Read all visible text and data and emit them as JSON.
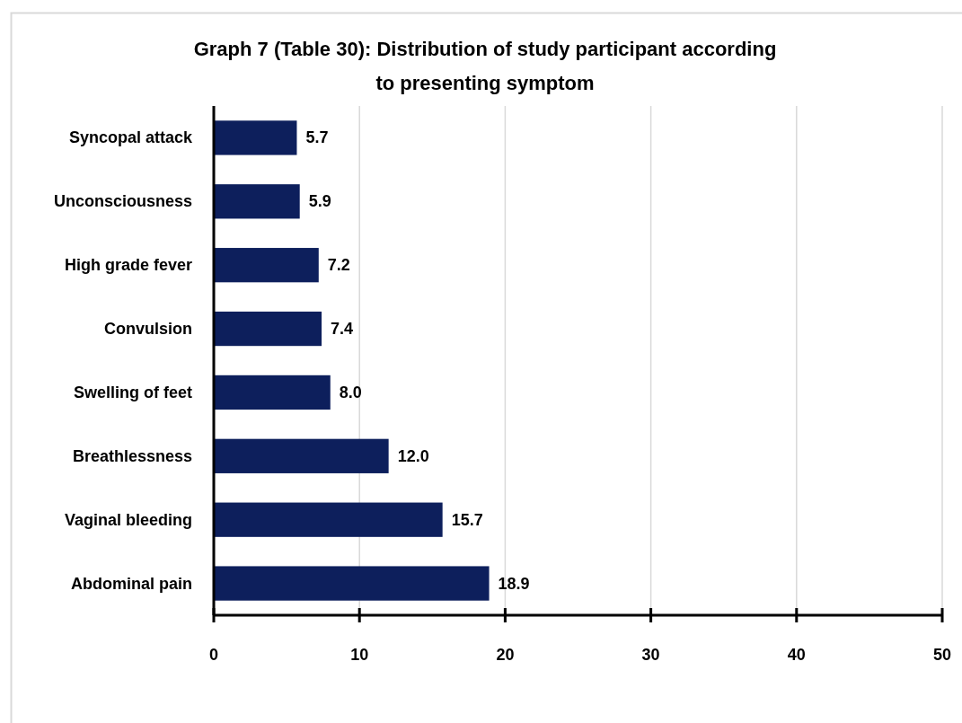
{
  "chart_data": {
    "type": "bar",
    "orientation": "horizontal",
    "title": "Graph 7 (Table 30): Distribution of study participant according\nto presenting symptom",
    "categories": [
      "Syncopal attack",
      "Unconsciousness",
      "High grade fever",
      "Convulsion",
      "Swelling of feet",
      "Breathlessness",
      "Vaginal bleeding",
      "Abdominal pain"
    ],
    "values": [
      5.7,
      5.9,
      7.2,
      7.4,
      8.0,
      12.0,
      15.7,
      18.9
    ],
    "value_labels": [
      "5.7",
      "5.9",
      "7.2",
      "7.4",
      "8.0",
      "12.0",
      "15.7",
      "18.9"
    ],
    "color": "#0d1f5c",
    "xlim": [
      0,
      50
    ],
    "xticks": [
      0,
      10,
      20,
      30,
      40,
      50
    ],
    "grid": "x"
  }
}
